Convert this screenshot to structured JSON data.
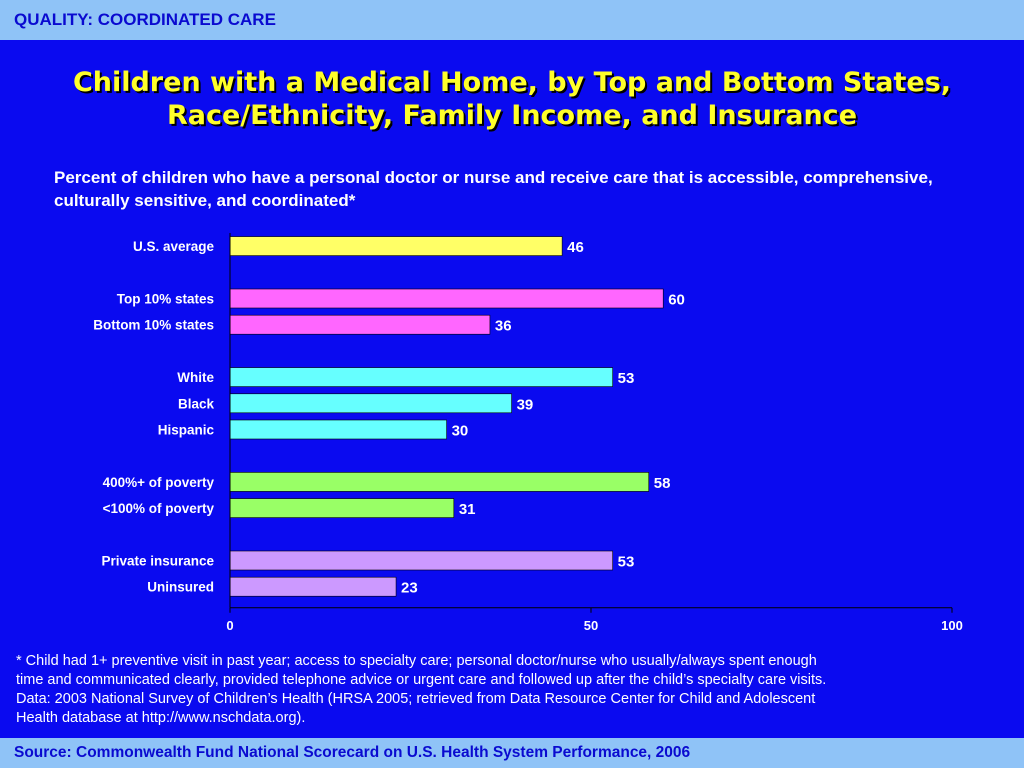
{
  "header": {
    "section": "QUALITY: COORDINATED CARE"
  },
  "slide": {
    "title_line1": "Children with a Medical Home, by Top and Bottom States,",
    "title_line2": "Race/Ethnicity, Family Income, and Insurance",
    "subtitle": "Percent of children who have a personal doctor or nurse and receive care that is accessible, comprehensive, culturally sensitive, and coordinated*"
  },
  "footnote": {
    "line1": "* Child had 1+ preventive visit in past year; access to specialty care; personal doctor/nurse who usually/always spent enough",
    "line2": "time and communicated clearly, provided telephone advice or urgent care and followed up after the child’s specialty care visits.",
    "line3": "Data: 2003 National Survey of Children’s Health (HRSA 2005; retrieved from Data Resource Center for Child and Adolescent",
    "line4": "Health database at http://www.nschdata.org)."
  },
  "footer": {
    "source": "Source: Commonwealth Fund National Scorecard on U.S. Health System Performance, 2006"
  },
  "colors": {
    "background": "#0a0af0",
    "bar_bar": "#8fc3f7",
    "title": "#ffff2a"
  },
  "chart_data": {
    "type": "bar",
    "orientation": "horizontal",
    "xlim": [
      0,
      100
    ],
    "xticks": [
      0,
      50,
      100
    ],
    "grid": false,
    "legend": "none",
    "groups": [
      {
        "bars": [
          {
            "label": "U.S. average",
            "value": 46,
            "color": "#ffff66"
          }
        ]
      },
      {
        "bars": [
          {
            "label": "Top 10% states",
            "value": 60,
            "color": "#ff66ff"
          },
          {
            "label": "Bottom 10% states",
            "value": 36,
            "color": "#ff66ff"
          }
        ]
      },
      {
        "bars": [
          {
            "label": "White",
            "value": 53,
            "color": "#66ffff"
          },
          {
            "label": "Black",
            "value": 39,
            "color": "#66ffff"
          },
          {
            "label": "Hispanic",
            "value": 30,
            "color": "#66ffff"
          }
        ]
      },
      {
        "bars": [
          {
            "label": "400%+ of poverty",
            "value": 58,
            "color": "#99ff66"
          },
          {
            "label": "<100% of poverty",
            "value": 31,
            "color": "#99ff66"
          }
        ]
      },
      {
        "bars": [
          {
            "label": "Private insurance",
            "value": 53,
            "color": "#cc99ff"
          },
          {
            "label": "Uninsured",
            "value": 23,
            "color": "#cc99ff"
          }
        ]
      }
    ]
  }
}
